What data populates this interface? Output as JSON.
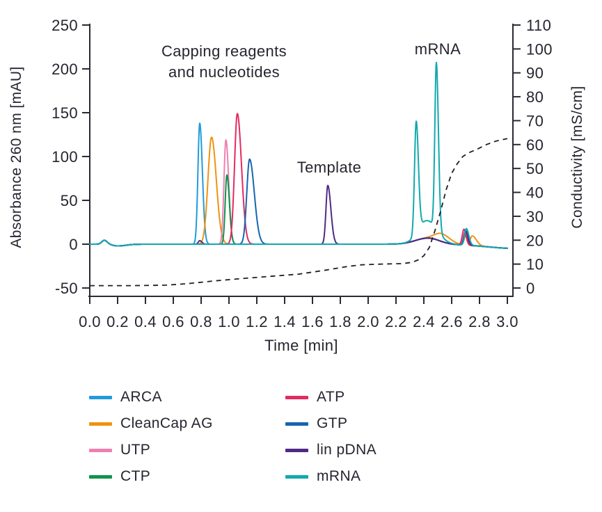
{
  "figure": {
    "title": "",
    "description": "Chromatogram of mRNA IVT mixture separation"
  },
  "chart_data": {
    "type": "line",
    "title": "",
    "grid": false,
    "legend_position": "bottom-two-columns",
    "x_axis": {
      "label": "Time [min]",
      "range": [
        0,
        3
      ],
      "tick_labels": [
        "0.0",
        "0.2",
        "0.4",
        "0.6",
        "0.8",
        "1.0",
        "1.2",
        "1.4",
        "1.6",
        "1.8",
        "2.0",
        "2.2",
        "2.4",
        "2.6",
        "2.8",
        "3.0"
      ]
    },
    "y_left_axis": {
      "label": "Absorbance 260 nm [mAU]",
      "range": [
        -50,
        250
      ],
      "tick_labels": [
        "250",
        "200",
        "150",
        "100",
        "50",
        "0",
        "-50"
      ]
    },
    "y_right_axis": {
      "label": "Conductivity [mS/cm]",
      "range": [
        0,
        110
      ],
      "tick_labels": [
        "110",
        "100",
        "90",
        "80",
        "70",
        "60",
        "50",
        "40",
        "30",
        "20",
        "10",
        "0"
      ]
    },
    "annotations": {
      "capping_line1": "Capping reagents",
      "capping_line2": "and nucleotides",
      "template": "Template",
      "mrna": "mRNA"
    },
    "axis_color": "#2b2933",
    "text_color": "#26242e",
    "series": [
      {
        "name": "ARCA",
        "color": "#219bdb",
        "unit": "mAU",
        "peaks": [
          [
            0.105,
            4.5,
            0.018,
            0.02
          ],
          [
            0.2,
            -2,
            0.035,
            0.06
          ],
          [
            0.79,
            138,
            0.013,
            0.019
          ],
          [
            2.43,
            7,
            0.09,
            0.08
          ],
          [
            2.698,
            14,
            0.011,
            0.015
          ],
          [
            3.08,
            -5,
            0.22,
            0.1
          ]
        ]
      },
      {
        "name": "CleanCap AG",
        "color": "#f0930e",
        "unit": "mAU",
        "peaks": [
          [
            0.105,
            4.5,
            0.018,
            0.02
          ],
          [
            0.2,
            -2,
            0.035,
            0.06
          ],
          [
            0.875,
            122,
            0.026,
            0.034
          ],
          [
            2.43,
            7,
            0.09,
            0.08
          ],
          [
            2.53,
            9,
            0.05,
            0.06
          ],
          [
            2.7,
            10,
            0.011,
            0.014
          ],
          [
            2.748,
            11,
            0.014,
            0.03
          ],
          [
            3.08,
            -5,
            0.22,
            0.1
          ]
        ]
      },
      {
        "name": "UTP",
        "color": "#ef7fb1",
        "unit": "mAU",
        "peaks": [
          [
            0.105,
            4.5,
            0.018,
            0.02
          ],
          [
            0.2,
            -2,
            0.035,
            0.06
          ],
          [
            0.978,
            119,
            0.014,
            0.02
          ],
          [
            2.43,
            7,
            0.09,
            0.08
          ],
          [
            2.695,
            14,
            0.011,
            0.015
          ],
          [
            3.08,
            -5,
            0.22,
            0.1
          ]
        ]
      },
      {
        "name": "CTP",
        "color": "#0f9349",
        "unit": "mAU",
        "peaks": [
          [
            0.105,
            4.5,
            0.018,
            0.02
          ],
          [
            0.2,
            -2,
            0.035,
            0.06
          ],
          [
            0.985,
            79,
            0.012,
            0.018
          ],
          [
            2.43,
            7,
            0.09,
            0.08
          ],
          [
            2.7,
            13,
            0.011,
            0.015
          ],
          [
            3.08,
            -5,
            0.22,
            0.1
          ]
        ]
      },
      {
        "name": "ATP",
        "color": "#e52a60",
        "unit": "mAU",
        "peaks": [
          [
            0.105,
            4.5,
            0.018,
            0.02
          ],
          [
            0.2,
            -2,
            0.035,
            0.06
          ],
          [
            1.06,
            149,
            0.02,
            0.03
          ],
          [
            2.43,
            7,
            0.09,
            0.08
          ],
          [
            2.688,
            18,
            0.012,
            0.015
          ],
          [
            3.08,
            -5,
            0.22,
            0.1
          ]
        ]
      },
      {
        "name": "GTP",
        "color": "#1566af",
        "unit": "mAU",
        "peaks": [
          [
            0.105,
            4.5,
            0.018,
            0.02
          ],
          [
            0.2,
            -2,
            0.035,
            0.06
          ],
          [
            1.148,
            97,
            0.02,
            0.034
          ],
          [
            2.43,
            7,
            0.09,
            0.08
          ],
          [
            2.7,
            17,
            0.012,
            0.016
          ],
          [
            3.08,
            -5,
            0.22,
            0.1
          ]
        ]
      },
      {
        "name": "lin pDNA",
        "color": "#4f2a84",
        "unit": "mAU",
        "peaks": [
          [
            0.105,
            4.5,
            0.018,
            0.02
          ],
          [
            0.2,
            -2,
            0.035,
            0.06
          ],
          [
            0.79,
            4,
            0.01,
            0.015
          ],
          [
            1.71,
            67,
            0.013,
            0.022
          ],
          [
            2.43,
            7,
            0.09,
            0.08
          ],
          [
            2.7,
            16,
            0.012,
            0.016
          ],
          [
            3.08,
            -5,
            0.22,
            0.1
          ]
        ]
      },
      {
        "name": "mRNA",
        "color": "#12a9ae",
        "unit": "mAU",
        "peaks": [
          [
            0.105,
            4.5,
            0.018,
            0.02
          ],
          [
            0.2,
            -2,
            0.035,
            0.06
          ],
          [
            2.345,
            128,
            0.012,
            0.016
          ],
          [
            2.42,
            20,
            0.055,
            0.07
          ],
          [
            2.49,
            190,
            0.011,
            0.015
          ],
          [
            2.43,
            7,
            0.09,
            0.08
          ],
          [
            2.705,
            19,
            0.012,
            0.018
          ],
          [
            3.08,
            -5,
            0.22,
            0.1
          ]
        ]
      }
    ],
    "conductivity_series": {
      "name": "Conductivity",
      "line_style": "dashed",
      "color": "#1e1e26",
      "unit": "mS/cm",
      "points": [
        [
          0,
          1
        ],
        [
          0.3,
          1
        ],
        [
          0.55,
          1.2
        ],
        [
          0.7,
          1.8
        ],
        [
          0.9,
          3
        ],
        [
          1.1,
          4
        ],
        [
          1.3,
          4.9
        ],
        [
          1.5,
          5.8
        ],
        [
          1.7,
          7.5
        ],
        [
          1.85,
          9
        ],
        [
          1.95,
          9.7
        ],
        [
          2.1,
          10
        ],
        [
          2.25,
          10.2
        ],
        [
          2.32,
          10.8
        ],
        [
          2.36,
          11.8
        ],
        [
          2.4,
          13.5
        ],
        [
          2.44,
          17
        ],
        [
          2.48,
          24
        ],
        [
          2.52,
          32
        ],
        [
          2.56,
          41
        ],
        [
          2.6,
          48
        ],
        [
          2.64,
          52
        ],
        [
          2.68,
          55
        ],
        [
          2.72,
          56.5
        ],
        [
          2.78,
          58
        ],
        [
          2.85,
          60
        ],
        [
          2.92,
          61.5
        ],
        [
          3.0,
          62.5
        ]
      ]
    }
  }
}
